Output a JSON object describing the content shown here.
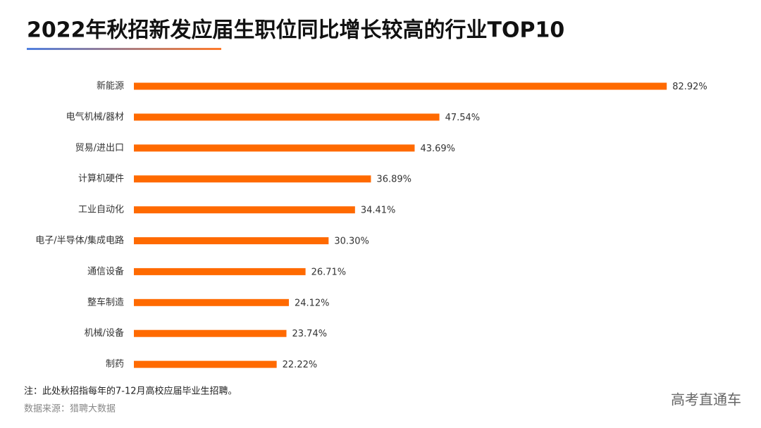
{
  "chart_data": {
    "type": "hbar",
    "title": "2022年秋招新发应届生职位同比增长较高的行业TOP10",
    "categories": [
      "新能源",
      "电气机械/器材",
      "贸易/进出口",
      "计算机硬件",
      "工业自动化",
      "电子/半导体/集成电路",
      "通信设备",
      "整车制造",
      "机械/设备",
      "制药"
    ],
    "values": [
      82.92,
      47.54,
      43.69,
      36.89,
      34.41,
      30.3,
      26.71,
      24.12,
      23.74,
      22.22
    ],
    "value_labels": [
      "82.92%",
      "47.54%",
      "43.69%",
      "36.89%",
      "34.41%",
      "30.30%",
      "26.71%",
      "24.12%",
      "23.74%",
      "22.22%"
    ],
    "color": "#ff6a00",
    "note": "注：此处秋招指每年的7-12月高校应届毕业生招聘。",
    "source": "数据来源：猎聘大数据",
    "watermark": "高考直通车"
  }
}
